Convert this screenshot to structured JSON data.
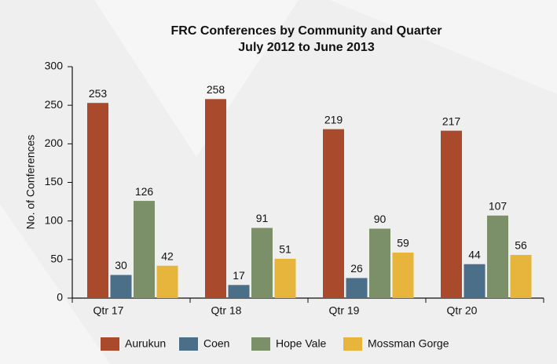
{
  "chart_data": {
    "type": "bar",
    "title": "FRC Conferences by Community and Quarter",
    "subtitle": "July 2012 to June 2013",
    "y_label": "No. of Conferences",
    "categories": [
      "Qtr 17",
      "Qtr 18",
      "Qtr 19",
      "Qtr 20"
    ],
    "series": [
      {
        "name": "Aurukun",
        "color": "#a94a2c",
        "values": [
          253,
          258,
          219,
          217
        ]
      },
      {
        "name": "Coen",
        "color": "#4b6e89",
        "values": [
          30,
          17,
          26,
          44
        ]
      },
      {
        "name": "Hope Vale",
        "color": "#7b8f69",
        "values": [
          126,
          91,
          90,
          107
        ]
      },
      {
        "name": "Mossman Gorge",
        "color": "#e7b53b",
        "values": [
          42,
          51,
          59,
          56
        ]
      }
    ],
    "ylim": [
      0,
      300
    ],
    "yticks": [
      0,
      50,
      100,
      150,
      200,
      250,
      300
    ],
    "grid": false,
    "legend": "bottom"
  }
}
